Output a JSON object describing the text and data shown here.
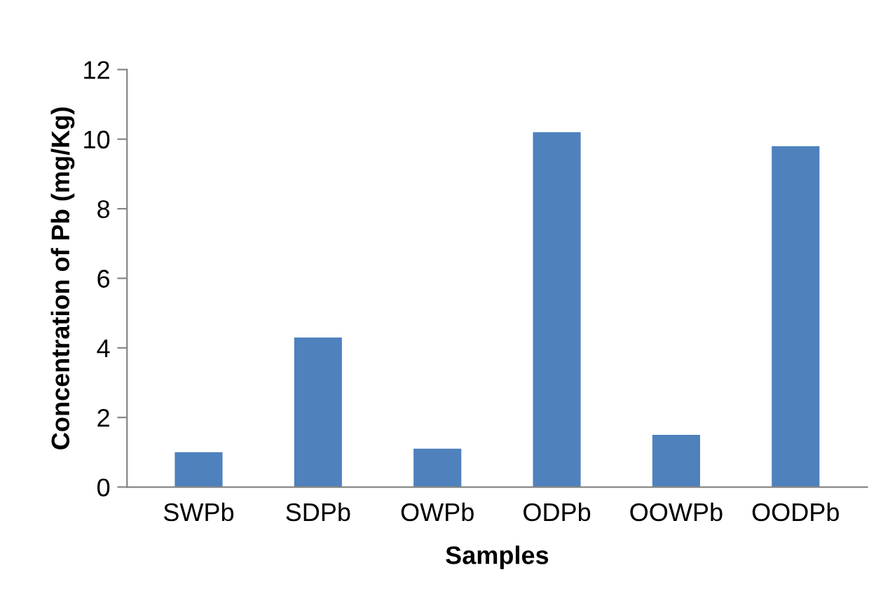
{
  "chart_data": {
    "type": "bar",
    "xlabel": "Samples",
    "ylabel": "Concentration of Pb (mg/Kg)",
    "categories": [
      "SWPb",
      "SDPb",
      "OWPb",
      "ODPb",
      "OOWPb",
      "OODPb"
    ],
    "values": [
      1.0,
      4.3,
      1.1,
      10.2,
      1.5,
      9.8
    ],
    "color": "#4f81bd",
    "ylim": [
      0,
      12
    ],
    "yticks": [
      0,
      2,
      4,
      6,
      8,
      10,
      12
    ],
    "grid": false,
    "legend": false
  }
}
